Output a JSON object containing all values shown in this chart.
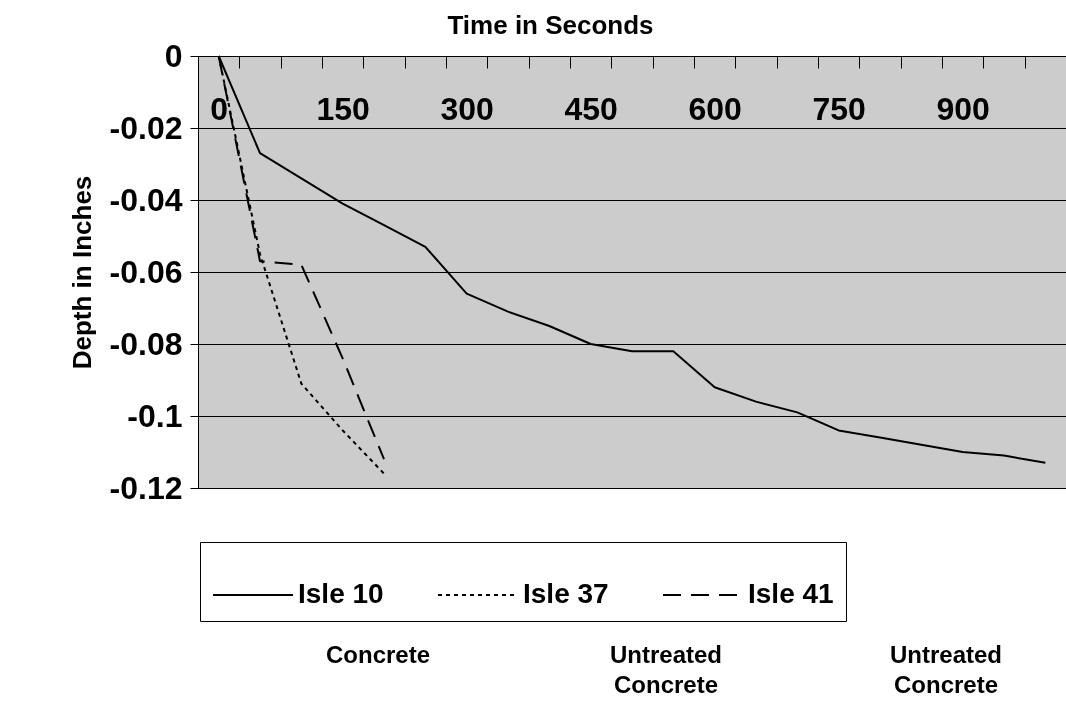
{
  "chart_data": {
    "type": "line",
    "xlabel": "Time in Seconds",
    "ylabel": "Depth in Inches",
    "categories": [
      "0",
      null,
      null,
      "150",
      null,
      null,
      "300",
      null,
      null,
      "450",
      null,
      null,
      "600",
      null,
      null,
      "750",
      null,
      null,
      "900",
      null,
      null
    ],
    "series": [
      {
        "name": "Isle 10",
        "color": "#000000",
        "line_style": "solid",
        "values": [
          0,
          -0.027,
          -0.034,
          -0.041,
          -0.047,
          -0.053,
          -0.066,
          -0.071,
          -0.075,
          -0.08,
          -0.082,
          -0.082,
          -0.092,
          -0.096,
          -0.099,
          -0.104,
          -0.106,
          -0.108,
          -0.11,
          -0.111,
          -0.113
        ]
      },
      {
        "name": "Isle 37",
        "color": "#000000",
        "line_style": "dotted",
        "values": [
          0,
          -0.055,
          -0.091,
          -0.104,
          -0.116,
          null,
          null,
          null,
          null,
          null,
          null,
          null,
          null,
          null,
          null,
          null,
          null,
          null,
          null,
          null,
          null
        ]
      },
      {
        "name": "Isle 41",
        "color": "#000000",
        "line_style": "dashed",
        "values": [
          0,
          -0.057,
          -0.058,
          -0.084,
          -0.112,
          null,
          null,
          null,
          null,
          null,
          null,
          null,
          null,
          null,
          null,
          null,
          null,
          null,
          null,
          null,
          null
        ]
      }
    ],
    "ylim": [
      -0.12,
      0
    ],
    "yticks": [
      0,
      -0.02,
      -0.04,
      -0.06,
      -0.08,
      -0.1,
      -0.12
    ],
    "grid": "y",
    "legend": "bottom",
    "marker": "none",
    "annotations": [
      "Concrete",
      "Untreated Concrete",
      "Untreated Concrete"
    ]
  }
}
